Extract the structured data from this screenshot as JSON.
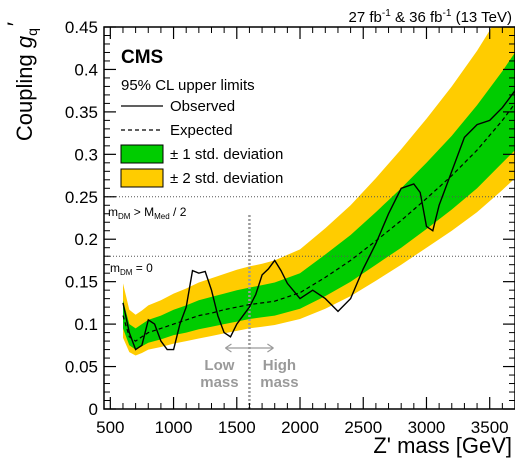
{
  "chart_data": {
    "type": "line",
    "header": {
      "lumi": "27 fb",
      "lumi2": "& 36 fb",
      "sup": "-1",
      "energy": "(13 TeV)"
    },
    "experiment": "CMS",
    "legend": {
      "title": "95% CL upper limits",
      "observed": "Observed",
      "expected": "Expected",
      "band1": "± 1 std. deviation",
      "band2": "± 2 std. deviation"
    },
    "xlabel": "Z' mass [GeV]",
    "ylabel": {
      "main": "Coupling",
      "sym": "g",
      "sub": "q",
      "prime": "′"
    },
    "xlim": [
      450,
      3700
    ],
    "ylim": [
      0,
      0.45
    ],
    "xticks": [
      500,
      1000,
      1500,
      2000,
      2500,
      3000,
      3500
    ],
    "xtick_labels": [
      "500",
      "1000",
      "1500",
      "2000",
      "2500",
      "3000",
      "3500"
    ],
    "yticks": [
      0,
      0.05,
      0.1,
      0.15,
      0.2,
      0.25,
      0.3,
      0.35,
      0.4,
      0.45
    ],
    "ytick_labels": [
      "0",
      "0.05",
      "0.1",
      "0.15",
      "0.2",
      "0.25",
      "0.3",
      "0.35",
      "0.4",
      "0.45"
    ],
    "mass_split": {
      "x": 1600,
      "low": [
        "Low",
        "mass"
      ],
      "high": [
        "High",
        "mass"
      ]
    },
    "reference_lines": [
      {
        "label_main": "m",
        "label_sub": "DM",
        "label_rest": " = 0",
        "y": 0.18
      },
      {
        "label_main": "m",
        "label_sub": "DM",
        "label_rest": " > M",
        "label_sub2": "Med",
        "label_end": " / 2",
        "y": 0.25
      }
    ],
    "x": [
      600,
      650,
      700,
      750,
      800,
      900,
      1000,
      1100,
      1200,
      1300,
      1400,
      1500,
      1600,
      1700,
      1800,
      2000,
      2200,
      2400,
      2600,
      2800,
      3000,
      3200,
      3400,
      3600,
      3700
    ],
    "expected": [
      0.11,
      0.085,
      0.08,
      0.085,
      0.09,
      0.095,
      0.1,
      0.105,
      0.11,
      0.113,
      0.117,
      0.12,
      0.123,
      0.125,
      0.127,
      0.137,
      0.155,
      0.175,
      0.198,
      0.222,
      0.248,
      0.275,
      0.305,
      0.34,
      0.36
    ],
    "sigma1_low": [
      0.095,
      0.075,
      0.07,
      0.074,
      0.078,
      0.082,
      0.087,
      0.09,
      0.094,
      0.097,
      0.1,
      0.103,
      0.106,
      0.108,
      0.11,
      0.118,
      0.133,
      0.15,
      0.17,
      0.19,
      0.212,
      0.235,
      0.26,
      0.29,
      0.305
    ],
    "sigma1_high": [
      0.128,
      0.1,
      0.095,
      0.1,
      0.105,
      0.11,
      0.117,
      0.122,
      0.128,
      0.132,
      0.136,
      0.14,
      0.143,
      0.146,
      0.149,
      0.16,
      0.182,
      0.205,
      0.232,
      0.26,
      0.29,
      0.322,
      0.358,
      0.398,
      0.42
    ],
    "sigma2_low": [
      0.084,
      0.067,
      0.063,
      0.066,
      0.07,
      0.073,
      0.077,
      0.08,
      0.083,
      0.086,
      0.089,
      0.092,
      0.095,
      0.097,
      0.099,
      0.106,
      0.118,
      0.133,
      0.151,
      0.17,
      0.19,
      0.21,
      0.232,
      0.258,
      0.272
    ],
    "sigma2_high": [
      0.148,
      0.117,
      0.111,
      0.116,
      0.122,
      0.128,
      0.136,
      0.142,
      0.149,
      0.154,
      0.159,
      0.164,
      0.168,
      0.171,
      0.175,
      0.188,
      0.213,
      0.24,
      0.272,
      0.306,
      0.342,
      0.38,
      0.422,
      0.47,
      0.495
    ],
    "observed_x": [
      600,
      650,
      700,
      750,
      800,
      850,
      900,
      950,
      1000,
      1050,
      1100,
      1150,
      1200,
      1250,
      1300,
      1350,
      1400,
      1450,
      1500,
      1550,
      1600,
      1650,
      1700,
      1750,
      1800,
      1850,
      1900,
      2000,
      2100,
      2200,
      2300,
      2400,
      2500,
      2600,
      2700,
      2800,
      2900,
      2950,
      3000,
      3050,
      3100,
      3200,
      3300,
      3400,
      3500,
      3600,
      3700
    ],
    "observed": [
      0.125,
      0.09,
      0.07,
      0.075,
      0.105,
      0.1,
      0.08,
      0.07,
      0.07,
      0.1,
      0.12,
      0.163,
      0.16,
      0.162,
      0.14,
      0.11,
      0.09,
      0.085,
      0.1,
      0.11,
      0.12,
      0.135,
      0.158,
      0.165,
      0.175,
      0.163,
      0.148,
      0.13,
      0.14,
      0.13,
      0.115,
      0.13,
      0.165,
      0.195,
      0.23,
      0.26,
      0.265,
      0.255,
      0.215,
      0.21,
      0.24,
      0.28,
      0.32,
      0.335,
      0.34,
      0.355,
      0.375
    ]
  }
}
